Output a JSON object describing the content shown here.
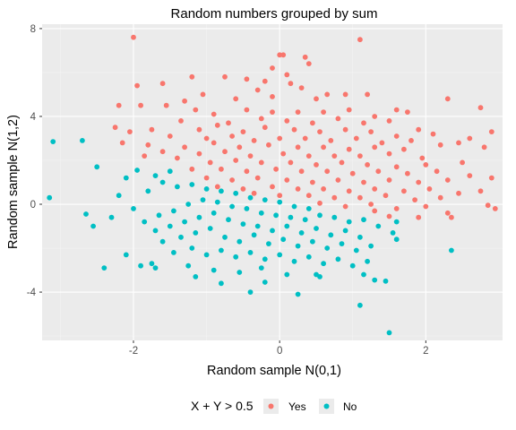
{
  "chart_data": {
    "type": "scatter",
    "title": "Random numbers grouped by sum",
    "xlabel": "Random sample N(0,1)",
    "ylabel": "Random sample N(1,2)",
    "xlim": [
      -3.25,
      3.05
    ],
    "ylim": [
      -6.2,
      8.2
    ],
    "x_ticks": [
      -2,
      0,
      2
    ],
    "y_ticks": [
      -4,
      0,
      4,
      8
    ],
    "x_tick_labels": [
      "-2",
      "0",
      "2"
    ],
    "y_tick_labels": [
      "-4",
      "0",
      "4",
      "8"
    ],
    "grid": true,
    "legend_position": "bottom",
    "legend_title": "X + Y > 0.5",
    "series": [
      {
        "name": "Yes",
        "color": "#F8766D",
        "points": [
          [
            -2.0,
            7.6
          ],
          [
            1.1,
            7.5
          ],
          [
            0.05,
            6.8
          ],
          [
            0.0,
            6.8
          ],
          [
            0.35,
            6.7
          ],
          [
            0.4,
            6.4
          ],
          [
            -0.1,
            6.2
          ],
          [
            -0.45,
            5.7
          ],
          [
            -0.75,
            5.8
          ],
          [
            -1.2,
            5.8
          ],
          [
            0.1,
            5.9
          ],
          [
            -0.2,
            5.6
          ],
          [
            0.15,
            5.5
          ],
          [
            -1.6,
            5.5
          ],
          [
            -1.95,
            5.4
          ],
          [
            -0.3,
            5.2
          ],
          [
            0.3,
            5.3
          ],
          [
            0.65,
            5.0
          ],
          [
            -1.05,
            5.0
          ],
          [
            0.9,
            5.0
          ],
          [
            1.2,
            5.0
          ],
          [
            -1.3,
            4.7
          ],
          [
            0.5,
            4.8
          ],
          [
            -0.6,
            4.8
          ],
          [
            -0.1,
            4.9
          ],
          [
            -1.55,
            4.5
          ],
          [
            -1.9,
            4.5
          ],
          [
            2.3,
            4.8
          ],
          [
            -2.2,
            4.5
          ],
          [
            1.6,
            4.3
          ],
          [
            1.75,
            4.2
          ],
          [
            2.75,
            4.4
          ],
          [
            -1.15,
            4.3
          ],
          [
            -0.9,
            4.1
          ],
          [
            -0.45,
            4.3
          ],
          [
            -0.1,
            4.2
          ],
          [
            0.25,
            4.2
          ],
          [
            0.6,
            4.2
          ],
          [
            0.95,
            4.3
          ],
          [
            1.3,
            4.0
          ],
          [
            -1.35,
            3.8
          ],
          [
            -0.7,
            3.7
          ],
          [
            -0.25,
            3.9
          ],
          [
            0.1,
            3.8
          ],
          [
            0.45,
            3.7
          ],
          [
            0.8,
            3.9
          ],
          [
            1.15,
            3.7
          ],
          [
            1.5,
            3.8
          ],
          [
            1.9,
            3.4
          ],
          [
            -2.25,
            3.5
          ],
          [
            -2.05,
            3.3
          ],
          [
            -1.75,
            3.4
          ],
          [
            -1.1,
            3.4
          ],
          [
            -0.85,
            3.6
          ],
          [
            -0.5,
            3.3
          ],
          [
            -0.2,
            3.5
          ],
          [
            0.2,
            3.4
          ],
          [
            0.55,
            3.3
          ],
          [
            0.9,
            3.4
          ],
          [
            1.25,
            3.3
          ],
          [
            1.6,
            3.1
          ],
          [
            2.1,
            3.2
          ],
          [
            2.6,
            3.0
          ],
          [
            2.9,
            3.3
          ],
          [
            -1.5,
            3.1
          ],
          [
            -1.0,
            3.0
          ],
          [
            -0.65,
            3.1
          ],
          [
            -0.35,
            2.9
          ],
          [
            0.0,
            3.0
          ],
          [
            0.35,
            3.0
          ],
          [
            0.7,
            2.9
          ],
          [
            1.05,
            3.0
          ],
          [
            1.4,
            2.8
          ],
          [
            1.8,
            2.9
          ],
          [
            -2.15,
            2.8
          ],
          [
            -1.8,
            2.7
          ],
          [
            -1.3,
            2.6
          ],
          [
            -0.9,
            2.8
          ],
          [
            -0.55,
            2.6
          ],
          [
            -0.15,
            2.7
          ],
          [
            0.25,
            2.6
          ],
          [
            0.6,
            2.6
          ],
          [
            0.95,
            2.5
          ],
          [
            1.3,
            2.6
          ],
          [
            1.7,
            2.5
          ],
          [
            2.2,
            2.7
          ],
          [
            2.45,
            2.8
          ],
          [
            2.8,
            2.6
          ],
          [
            -1.6,
            2.4
          ],
          [
            -1.1,
            2.3
          ],
          [
            -0.75,
            2.4
          ],
          [
            -0.4,
            2.2
          ],
          [
            0.05,
            2.3
          ],
          [
            0.4,
            2.2
          ],
          [
            0.75,
            2.2
          ],
          [
            1.1,
            2.2
          ],
          [
            1.5,
            2.3
          ],
          [
            1.95,
            2.1
          ],
          [
            -1.85,
            2.2
          ],
          [
            -1.4,
            2.1
          ],
          [
            -0.95,
            1.9
          ],
          [
            -0.6,
            2.0
          ],
          [
            -0.25,
            1.9
          ],
          [
            0.15,
            1.9
          ],
          [
            0.5,
            1.8
          ],
          [
            0.85,
            1.9
          ],
          [
            1.2,
            1.8
          ],
          [
            1.6,
            1.7
          ],
          [
            2.0,
            1.8
          ],
          [
            2.5,
            1.9
          ],
          [
            -1.2,
            1.6
          ],
          [
            -0.8,
            1.6
          ],
          [
            -0.45,
            1.5
          ],
          [
            -0.05,
            1.6
          ],
          [
            0.3,
            1.5
          ],
          [
            0.65,
            1.5
          ],
          [
            1.0,
            1.4
          ],
          [
            1.35,
            1.5
          ],
          [
            1.75,
            1.4
          ],
          [
            2.15,
            1.5
          ],
          [
            2.6,
            1.3
          ],
          [
            -1.0,
            1.2
          ],
          [
            -0.65,
            1.1
          ],
          [
            -0.3,
            1.2
          ],
          [
            0.1,
            1.1
          ],
          [
            0.45,
            1.0
          ],
          [
            0.8,
            1.1
          ],
          [
            1.15,
            1.0
          ],
          [
            1.5,
            1.1
          ],
          [
            1.9,
            1.0
          ],
          [
            2.3,
            1.1
          ],
          [
            2.9,
            1.2
          ],
          [
            -0.85,
            0.8
          ],
          [
            -0.5,
            0.7
          ],
          [
            -0.1,
            0.8
          ],
          [
            0.25,
            0.7
          ],
          [
            0.6,
            0.7
          ],
          [
            0.95,
            0.6
          ],
          [
            1.3,
            0.7
          ],
          [
            1.7,
            0.6
          ],
          [
            2.05,
            0.7
          ],
          [
            2.45,
            0.5
          ],
          [
            -0.35,
            0.5
          ],
          [
            0.0,
            0.4
          ],
          [
            0.4,
            0.4
          ],
          [
            0.75,
            0.3
          ],
          [
            1.1,
            0.3
          ],
          [
            1.45,
            0.4
          ],
          [
            1.85,
            0.2
          ],
          [
            2.2,
            0.3
          ],
          [
            2.75,
            0.6
          ],
          [
            0.55,
            0.05
          ],
          [
            0.9,
            -0.1
          ],
          [
            1.25,
            0.0
          ],
          [
            1.6,
            -0.2
          ],
          [
            2.0,
            -0.1
          ],
          [
            2.3,
            -0.4
          ],
          [
            2.85,
            -0.05
          ],
          [
            2.95,
            -0.2
          ],
          [
            1.5,
            -0.55
          ],
          [
            1.9,
            -0.6
          ],
          [
            2.35,
            -0.6
          ],
          [
            1.3,
            -0.3
          ]
        ]
      },
      {
        "name": "No",
        "color": "#00BFC4",
        "points": [
          [
            -3.1,
            2.85
          ],
          [
            -2.7,
            2.9
          ],
          [
            -2.5,
            1.7
          ],
          [
            -2.1,
            1.2
          ],
          [
            -1.95,
            1.55
          ],
          [
            -1.7,
            1.3
          ],
          [
            -1.5,
            1.5
          ],
          [
            -3.15,
            0.3
          ],
          [
            -2.65,
            -0.45
          ],
          [
            -2.55,
            -1.0
          ],
          [
            -2.3,
            -0.6
          ],
          [
            -2.2,
            0.4
          ],
          [
            -2.0,
            -0.2
          ],
          [
            -1.8,
            0.6
          ],
          [
            -1.6,
            1.0
          ],
          [
            -1.4,
            0.8
          ],
          [
            -1.2,
            0.9
          ],
          [
            -1.0,
            0.7
          ],
          [
            -0.8,
            0.6
          ],
          [
            -0.6,
            0.5
          ],
          [
            -0.4,
            0.3
          ],
          [
            -0.2,
            0.2
          ],
          [
            0.0,
            0.1
          ],
          [
            0.2,
            -0.1
          ],
          [
            0.4,
            -0.2
          ],
          [
            -1.85,
            -0.8
          ],
          [
            -1.65,
            -0.5
          ],
          [
            -1.45,
            -0.3
          ],
          [
            -1.25,
            0.0
          ],
          [
            -1.05,
            0.2
          ],
          [
            -0.85,
            0.1
          ],
          [
            -0.65,
            -0.1
          ],
          [
            -0.45,
            -0.2
          ],
          [
            -0.25,
            -0.4
          ],
          [
            -0.05,
            -0.5
          ],
          [
            0.15,
            -0.6
          ],
          [
            0.35,
            -0.7
          ],
          [
            0.55,
            -0.5
          ],
          [
            0.75,
            -0.6
          ],
          [
            0.95,
            -0.8
          ],
          [
            1.15,
            -0.7
          ],
          [
            -1.7,
            -1.2
          ],
          [
            -1.5,
            -1.0
          ],
          [
            -1.3,
            -0.8
          ],
          [
            -1.1,
            -0.6
          ],
          [
            -0.9,
            -0.4
          ],
          [
            -0.7,
            -0.7
          ],
          [
            -0.5,
            -0.9
          ],
          [
            -0.3,
            -1.0
          ],
          [
            -0.1,
            -1.2
          ],
          [
            0.1,
            -1.0
          ],
          [
            0.3,
            -1.3
          ],
          [
            0.5,
            -1.1
          ],
          [
            0.7,
            -1.4
          ],
          [
            0.9,
            -1.2
          ],
          [
            1.1,
            -1.5
          ],
          [
            1.35,
            -1.0
          ],
          [
            1.55,
            -1.3
          ],
          [
            -1.6,
            -1.7
          ],
          [
            -1.35,
            -1.5
          ],
          [
            -1.15,
            -1.3
          ],
          [
            -0.95,
            -1.1
          ],
          [
            -0.75,
            -1.5
          ],
          [
            -0.55,
            -1.7
          ],
          [
            -0.35,
            -1.4
          ],
          [
            -0.15,
            -1.8
          ],
          [
            0.05,
            -1.6
          ],
          [
            0.25,
            -1.9
          ],
          [
            0.45,
            -1.7
          ],
          [
            0.65,
            -2.0
          ],
          [
            0.85,
            -1.8
          ],
          [
            1.05,
            -2.1
          ],
          [
            1.25,
            -1.9
          ],
          [
            -1.45,
            -2.2
          ],
          [
            -1.2,
            -2.0
          ],
          [
            -1.0,
            -2.3
          ],
          [
            -0.8,
            -2.1
          ],
          [
            -0.6,
            -2.4
          ],
          [
            -0.4,
            -2.2
          ],
          [
            -0.2,
            -2.5
          ],
          [
            0.0,
            -2.3
          ],
          [
            0.2,
            -2.6
          ],
          [
            0.4,
            -2.4
          ],
          [
            0.6,
            -2.7
          ],
          [
            0.8,
            -2.5
          ],
          [
            1.0,
            -2.8
          ],
          [
            1.2,
            -2.6
          ],
          [
            -2.4,
            -2.9
          ],
          [
            -1.75,
            -2.7
          ],
          [
            -1.25,
            -2.8
          ],
          [
            -0.9,
            -3.0
          ],
          [
            -0.55,
            -3.1
          ],
          [
            -0.25,
            -2.9
          ],
          [
            0.1,
            -3.2
          ],
          [
            0.5,
            -3.2
          ],
          [
            1.15,
            -3.2
          ],
          [
            1.3,
            -3.45
          ],
          [
            -0.4,
            -4.0
          ],
          [
            0.25,
            -4.1
          ],
          [
            1.1,
            -4.6
          ],
          [
            1.5,
            -5.85
          ],
          [
            2.35,
            -2.1
          ],
          [
            -2.1,
            -2.3
          ],
          [
            -1.9,
            -2.8
          ],
          [
            -1.7,
            -2.9
          ],
          [
            -1.15,
            -3.3
          ],
          [
            -0.8,
            -3.6
          ],
          [
            -0.2,
            -3.55
          ],
          [
            0.55,
            -3.3
          ],
          [
            1.45,
            -3.5
          ],
          [
            1.6,
            -0.8
          ],
          [
            1.6,
            -1.6
          ]
        ]
      }
    ]
  }
}
